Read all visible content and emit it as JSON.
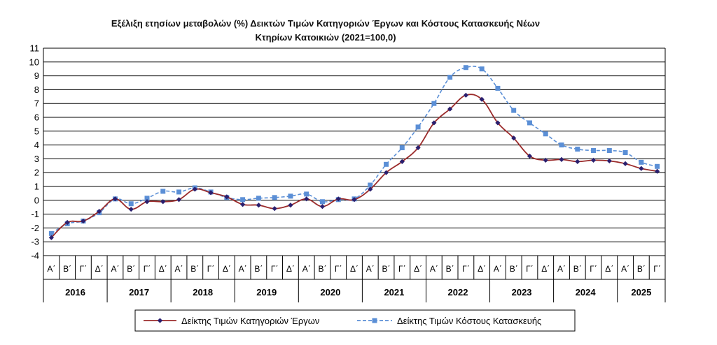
{
  "chart_data": {
    "type": "line",
    "title_line1": "Εξέλιξη ετησίων μεταβολών (%) Δεικτών Τιμών Κατηγοριών Έργων και Κόστους Κατασκευής Νέων",
    "title_line2": "Κτηρίων Κατοικιών (2021=100,0)",
    "ylim": [
      -4,
      11
    ],
    "yticks": [
      -4,
      -3,
      -2,
      -1,
      0,
      1,
      2,
      3,
      4,
      5,
      6,
      7,
      8,
      9,
      10,
      11
    ],
    "grid": "horizontal",
    "quarter_labels": [
      "Α΄",
      "Β΄",
      "Γ΄",
      "Δ΄"
    ],
    "years": [
      {
        "label": "2016",
        "quarters": 4
      },
      {
        "label": "2017",
        "quarters": 4
      },
      {
        "label": "2018",
        "quarters": 4
      },
      {
        "label": "2019",
        "quarters": 4
      },
      {
        "label": "2020",
        "quarters": 4
      },
      {
        "label": "2021",
        "quarters": 4
      },
      {
        "label": "2022",
        "quarters": 4
      },
      {
        "label": "2023",
        "quarters": 4
      },
      {
        "label": "2024",
        "quarters": 4
      },
      {
        "label": "2025",
        "quarters": 3
      }
    ],
    "legend_position": "bottom",
    "series": [
      {
        "name": "Δείκτης Τιμών Κατηγοριών Έργων",
        "line_color": "#9b2b2b",
        "marker_color": "#2a1f6e",
        "marker": "diamond",
        "style": "solid",
        "values": [
          -2.7,
          -1.6,
          -1.5,
          -0.8,
          0.1,
          -0.65,
          -0.1,
          -0.1,
          0.05,
          0.8,
          0.55,
          0.25,
          -0.3,
          -0.35,
          -0.6,
          -0.35,
          0.1,
          -0.45,
          0.1,
          0.05,
          0.8,
          2.0,
          2.8,
          3.8,
          5.6,
          6.6,
          7.6,
          7.3,
          5.6,
          4.5,
          3.2,
          2.9,
          2.95,
          2.8,
          2.9,
          2.85,
          2.65,
          2.3,
          2.1
        ]
      },
      {
        "name": "Δείκτης Τιμών Κόστους Κατασκευής",
        "line_color": "#5b8fd6",
        "marker_color": "#5b8fd6",
        "marker": "square",
        "style": "dashed",
        "values": [
          -2.4,
          -1.7,
          -1.5,
          -0.9,
          0.1,
          -0.25,
          0.15,
          0.65,
          0.6,
          0.9,
          0.6,
          0.2,
          0.05,
          0.15,
          0.2,
          0.3,
          0.45,
          -0.1,
          0.05,
          0.1,
          1.1,
          2.6,
          3.8,
          5.3,
          7.0,
          8.9,
          9.6,
          9.5,
          8.1,
          6.5,
          5.6,
          4.8,
          4.0,
          3.7,
          3.6,
          3.6,
          3.45,
          2.75,
          2.45
        ]
      }
    ]
  }
}
